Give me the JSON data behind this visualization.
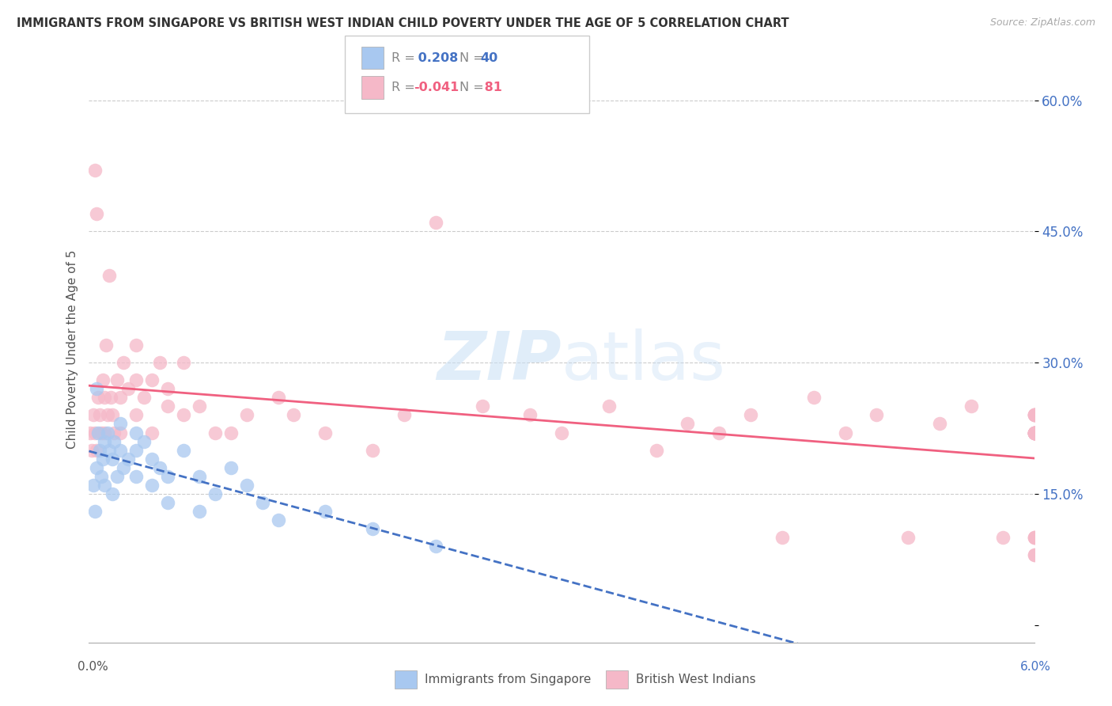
{
  "title": "IMMIGRANTS FROM SINGAPORE VS BRITISH WEST INDIAN CHILD POVERTY UNDER THE AGE OF 5 CORRELATION CHART",
  "source": "Source: ZipAtlas.com",
  "ylabel": "Child Poverty Under the Age of 5",
  "x_lim": [
    0.0,
    0.06
  ],
  "y_lim": [
    -0.02,
    0.65
  ],
  "y_ticks": [
    0.0,
    0.15,
    0.3,
    0.45,
    0.6
  ],
  "y_tick_labels": [
    "",
    "15.0%",
    "30.0%",
    "45.0%",
    "60.0%"
  ],
  "color_singapore": "#a8c8f0",
  "color_bwi": "#f5b8c8",
  "color_singapore_line": "#4472c4",
  "color_bwi_line": "#f06080",
  "watermark_zip": "ZIP",
  "watermark_atlas": "atlas",
  "sg_x": [
    0.0003,
    0.0004,
    0.0005,
    0.0005,
    0.0006,
    0.0007,
    0.0008,
    0.0009,
    0.001,
    0.001,
    0.0012,
    0.0013,
    0.0015,
    0.0015,
    0.0016,
    0.0018,
    0.002,
    0.002,
    0.0022,
    0.0025,
    0.003,
    0.003,
    0.003,
    0.0035,
    0.004,
    0.004,
    0.0045,
    0.005,
    0.005,
    0.006,
    0.007,
    0.007,
    0.008,
    0.009,
    0.01,
    0.011,
    0.012,
    0.015,
    0.018,
    0.022
  ],
  "sg_y": [
    0.16,
    0.13,
    0.27,
    0.18,
    0.22,
    0.2,
    0.17,
    0.19,
    0.21,
    0.16,
    0.22,
    0.2,
    0.19,
    0.15,
    0.21,
    0.17,
    0.2,
    0.23,
    0.18,
    0.19,
    0.22,
    0.2,
    0.17,
    0.21,
    0.19,
    0.16,
    0.18,
    0.17,
    0.14,
    0.2,
    0.17,
    0.13,
    0.15,
    0.18,
    0.16,
    0.14,
    0.12,
    0.13,
    0.11,
    0.09
  ],
  "bwi_x": [
    0.0001,
    0.0002,
    0.0003,
    0.0004,
    0.0004,
    0.0005,
    0.0005,
    0.0006,
    0.0007,
    0.0008,
    0.0009,
    0.001,
    0.001,
    0.0011,
    0.0012,
    0.0013,
    0.0014,
    0.0015,
    0.0016,
    0.0018,
    0.002,
    0.002,
    0.0022,
    0.0025,
    0.003,
    0.003,
    0.003,
    0.0035,
    0.004,
    0.004,
    0.0045,
    0.005,
    0.005,
    0.006,
    0.006,
    0.007,
    0.008,
    0.009,
    0.01,
    0.012,
    0.013,
    0.015,
    0.018,
    0.02,
    0.022,
    0.025,
    0.028,
    0.03,
    0.033,
    0.036,
    0.038,
    0.04,
    0.042,
    0.044,
    0.046,
    0.048,
    0.05,
    0.052,
    0.054,
    0.056,
    0.058,
    0.06,
    0.06,
    0.06,
    0.06,
    0.06,
    0.06,
    0.06,
    0.06,
    0.06,
    0.06,
    0.06,
    0.06,
    0.06,
    0.06,
    0.06,
    0.06,
    0.06,
    0.06,
    0.06,
    0.06
  ],
  "bwi_y": [
    0.22,
    0.2,
    0.24,
    0.22,
    0.52,
    0.2,
    0.47,
    0.26,
    0.24,
    0.22,
    0.28,
    0.26,
    0.22,
    0.32,
    0.24,
    0.4,
    0.26,
    0.24,
    0.22,
    0.28,
    0.22,
    0.26,
    0.3,
    0.27,
    0.32,
    0.24,
    0.28,
    0.26,
    0.28,
    0.22,
    0.3,
    0.25,
    0.27,
    0.3,
    0.24,
    0.25,
    0.22,
    0.22,
    0.24,
    0.26,
    0.24,
    0.22,
    0.2,
    0.24,
    0.46,
    0.25,
    0.24,
    0.22,
    0.25,
    0.2,
    0.23,
    0.22,
    0.24,
    0.1,
    0.26,
    0.22,
    0.24,
    0.1,
    0.23,
    0.25,
    0.1,
    0.22,
    0.24,
    0.22,
    0.08,
    0.22,
    0.24,
    0.22,
    0.1,
    0.22,
    0.22,
    0.1,
    0.24,
    0.22,
    0.08,
    0.22,
    0.24,
    0.1,
    0.22,
    0.22,
    0.24
  ]
}
